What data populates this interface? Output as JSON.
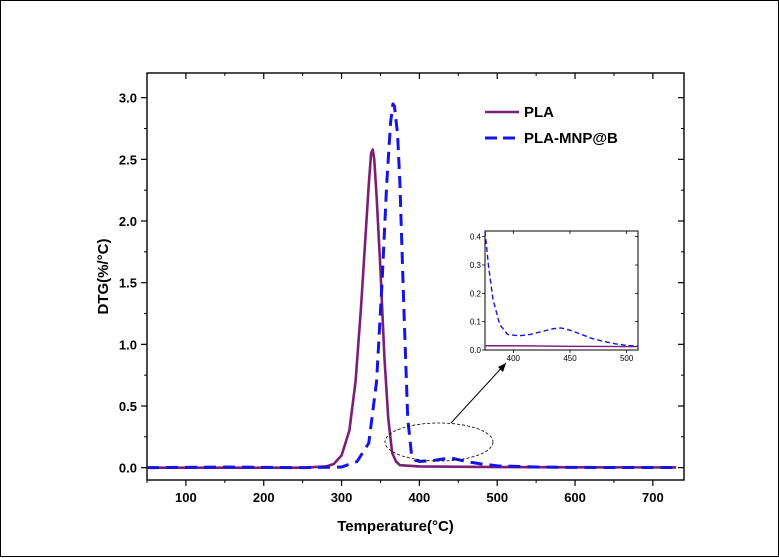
{
  "chart_data": {
    "type": "line",
    "xlabel": "Temperature(°C)",
    "ylabel": "DTG(%/°C)",
    "xlim": [
      50,
      740
    ],
    "ylim": [
      -0.1,
      3.2
    ],
    "x_ticks": [
      100,
      200,
      300,
      400,
      500,
      600,
      700
    ],
    "y_ticks": [
      0.0,
      0.5,
      1.0,
      1.5,
      2.0,
      2.5,
      3.0
    ],
    "x_tick_labels": [
      "100",
      "200",
      "300",
      "400",
      "500",
      "600",
      "700"
    ],
    "y_tick_labels": [
      "0.0",
      "0.5",
      "1.0",
      "1.5",
      "2.0",
      "2.5",
      "3.0"
    ],
    "grid": false,
    "legend_position": "top-right",
    "series": [
      {
        "name": "PLA",
        "color": "#7b1e7a",
        "style": "solid",
        "x": [
          50,
          150,
          250,
          280,
          290,
          300,
          310,
          318,
          325,
          330,
          335,
          338,
          340,
          342,
          345,
          350,
          355,
          360,
          365,
          370,
          375,
          400,
          500,
          600,
          730
        ],
        "y": [
          0.0,
          0.0,
          0.0,
          0.01,
          0.03,
          0.1,
          0.3,
          0.7,
          1.3,
          1.8,
          2.3,
          2.55,
          2.58,
          2.5,
          2.2,
          1.6,
          0.9,
          0.4,
          0.12,
          0.05,
          0.02,
          0.01,
          0.005,
          0.003,
          0.002
        ]
      },
      {
        "name": "PLA-MNP@B",
        "color": "#1414e6",
        "style": "dashed",
        "x": [
          50,
          150,
          250,
          300,
          320,
          335,
          345,
          352,
          358,
          363,
          366,
          368,
          372,
          375,
          380,
          385,
          390,
          395,
          400,
          420,
          440,
          460,
          480,
          500,
          550,
          600,
          700,
          730
        ],
        "y": [
          0.0,
          0.005,
          0.0,
          0.005,
          0.05,
          0.2,
          0.7,
          1.5,
          2.3,
          2.8,
          2.95,
          2.93,
          2.7,
          2.3,
          1.3,
          0.4,
          0.1,
          0.06,
          0.05,
          0.06,
          0.08,
          0.05,
          0.03,
          0.015,
          0.005,
          0.002,
          0.001,
          0.001
        ]
      }
    ],
    "inset": {
      "xlim": [
        375,
        510
      ],
      "ylim": [
        0.0,
        0.42
      ],
      "x_ticks": [
        400,
        450,
        500
      ],
      "y_ticks": [
        0.0,
        0.1,
        0.2,
        0.3,
        0.4
      ],
      "x_tick_labels": [
        "400",
        "450",
        "500"
      ],
      "y_tick_labels": [
        "0.0",
        "0.1",
        "0.2",
        "0.3",
        "0.4"
      ],
      "series": [
        {
          "name": "PLA",
          "x": [
            375,
            400,
            450,
            500,
            510
          ],
          "y": [
            0.015,
            0.015,
            0.013,
            0.012,
            0.012
          ]
        },
        {
          "name": "PLA-MNP@B",
          "x": [
            375,
            378,
            382,
            388,
            395,
            405,
            415,
            425,
            435,
            442,
            450,
            460,
            470,
            480,
            490,
            500,
            510
          ],
          "y": [
            0.42,
            0.3,
            0.18,
            0.09,
            0.055,
            0.05,
            0.055,
            0.065,
            0.075,
            0.078,
            0.07,
            0.055,
            0.04,
            0.03,
            0.022,
            0.016,
            0.013
          ]
        }
      ]
    }
  }
}
